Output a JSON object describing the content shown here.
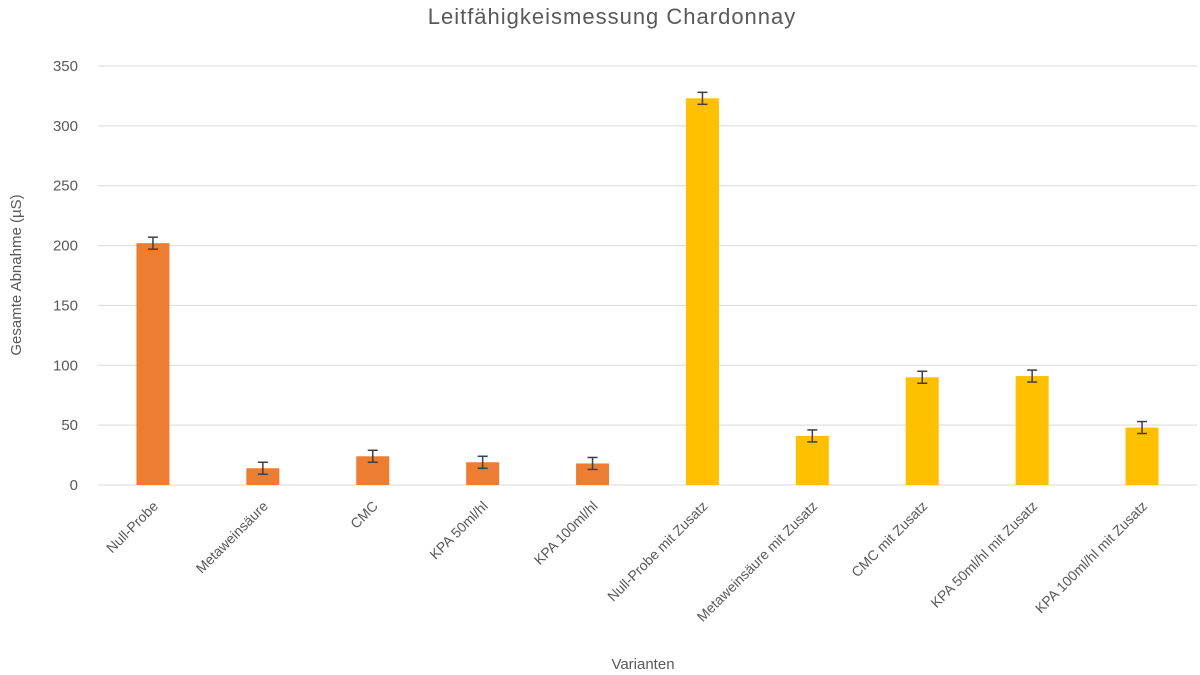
{
  "chart_data": {
    "type": "bar",
    "title": "Leitfähigkeismessung  Chardonnay",
    "xlabel": "Varianten",
    "ylabel": "Gesamte Abnahme (µS)",
    "ylim": [
      0,
      350
    ],
    "yticks": [
      0,
      50,
      100,
      150,
      200,
      250,
      300,
      350
    ],
    "grid": true,
    "categories": [
      "Null-Probe",
      "Metaweinsäure",
      "CMC",
      "KPA 50ml/hl",
      "KPA 100ml/hl",
      "Null-Probe mit Zusatz",
      "Metaweinsäure mit Zusatz",
      "CMC mit Zusatz",
      "KPA 50ml/hl mit Zusatz",
      "KPA 100ml/hl mit Zusatz"
    ],
    "values": [
      202,
      14,
      24,
      19,
      18,
      323,
      41,
      90,
      91,
      48
    ],
    "errors": [
      5,
      5,
      5,
      5,
      5,
      5,
      5,
      5,
      5,
      5
    ],
    "colors": [
      "#ED7D31",
      "#ED7D31",
      "#ED7D31",
      "#ED7D31",
      "#ED7D31",
      "#FFC000",
      "#FFC000",
      "#FFC000",
      "#FFC000",
      "#FFC000"
    ],
    "error_color": "#404040",
    "grid_color": "#d9d9d9"
  }
}
